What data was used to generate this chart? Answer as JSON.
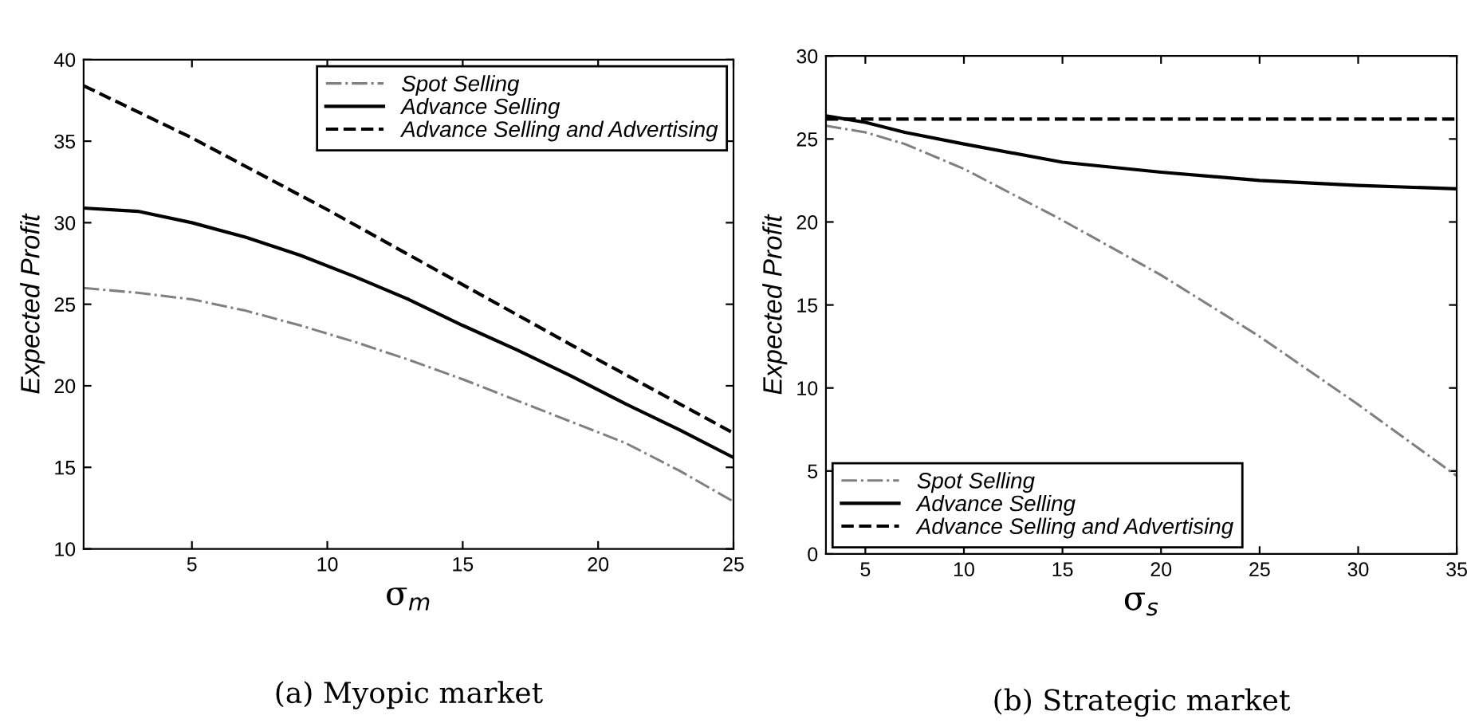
{
  "chart_data": [
    {
      "type": "line",
      "xlabel": "σ$_{m}$",
      "ylabel": "Expected Profit",
      "xlim": [
        1,
        25
      ],
      "xticks": [
        5,
        10,
        15,
        20,
        25
      ],
      "ylim": [
        10,
        40
      ],
      "yticks": [
        10,
        15,
        20,
        25,
        30,
        35,
        40
      ],
      "grid": false,
      "legend": "top right",
      "annotations": [
        "(a) Myopic market"
      ],
      "series": [
        {
          "name": "Spot Selling",
          "color": "#808080",
          "line_style": "dashdot",
          "x": [
            1,
            3,
            5,
            7,
            9,
            11,
            13,
            15,
            17,
            19,
            21,
            23,
            25
          ],
          "values": [
            26.0,
            25.7,
            25.3,
            24.6,
            23.7,
            22.7,
            21.6,
            20.4,
            19.1,
            17.8,
            16.5,
            14.8,
            12.9
          ]
        },
        {
          "name": "Advance Selling",
          "color": "#000000",
          "line_style": "solid",
          "x": [
            1,
            3,
            5,
            7,
            9,
            11,
            13,
            15,
            17,
            19,
            21,
            23,
            25
          ],
          "values": [
            30.9,
            30.7,
            30.0,
            29.1,
            28.0,
            26.7,
            25.3,
            23.7,
            22.2,
            20.6,
            18.9,
            17.3,
            15.6
          ]
        },
        {
          "name": "Advance Selling and Advertising",
          "color": "#000000",
          "line_style": "dashed",
          "x": [
            1,
            5,
            10,
            15,
            20,
            25
          ],
          "values": [
            38.4,
            35.2,
            30.8,
            26.2,
            21.6,
            17.1
          ]
        }
      ]
    },
    {
      "type": "line",
      "xlabel": "σ$_{s}$",
      "ylabel": "Expected Profit",
      "xlim": [
        3,
        35
      ],
      "xticks": [
        5,
        10,
        15,
        20,
        25,
        30,
        35
      ],
      "ylim": [
        0,
        30
      ],
      "yticks": [
        0,
        5,
        10,
        15,
        20,
        25,
        30
      ],
      "grid": false,
      "legend": "bottom left",
      "annotations": [
        "(b) Strategic market"
      ],
      "series": [
        {
          "name": "Spot Selling",
          "color": "#808080",
          "line_style": "dashdot",
          "x": [
            3,
            5,
            7,
            10,
            15,
            20,
            25,
            30,
            35
          ],
          "values": [
            25.8,
            25.4,
            24.7,
            23.2,
            20.1,
            16.8,
            13.1,
            9.0,
            4.7
          ]
        },
        {
          "name": "Advance Selling",
          "color": "#000000",
          "line_style": "solid",
          "x": [
            3,
            5,
            7,
            10,
            15,
            20,
            25,
            30,
            35
          ],
          "values": [
            26.4,
            26.0,
            25.4,
            24.7,
            23.6,
            23.0,
            22.5,
            22.2,
            22.0
          ]
        },
        {
          "name": "Advance Selling and Advertising",
          "color": "#000000",
          "line_style": "dashed",
          "x": [
            3,
            35
          ],
          "values": [
            26.2,
            26.2
          ]
        }
      ]
    }
  ]
}
